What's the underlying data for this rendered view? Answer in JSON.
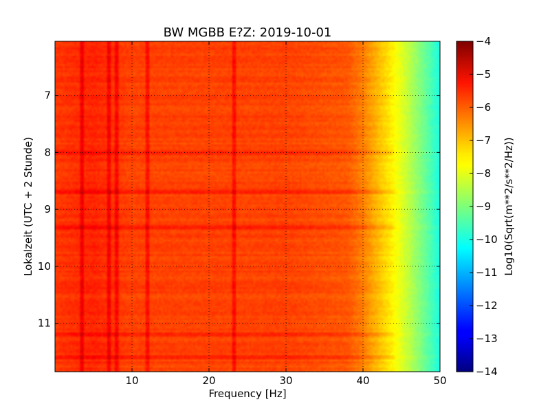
{
  "chart_data": {
    "type": "heatmap",
    "title": "BW MGBB E?Z: 2019-10-01",
    "xlabel": "Frequency [Hz]",
    "ylabel": "Lokalzeit (UTC + 2 Stunde)",
    "colorbar_label": "Log10(Sqrt(m**2/s**2/Hz))",
    "xlim": [
      0,
      50
    ],
    "ylim": [
      11.85,
      6.05
    ],
    "y_inverted": true,
    "x_ticks": [
      10,
      20,
      30,
      40,
      50
    ],
    "x_tick_labels": [
      "10",
      "20",
      "30",
      "40",
      "50"
    ],
    "y_ticks": [
      7,
      8,
      9,
      10,
      11
    ],
    "y_tick_labels": [
      "7",
      "8",
      "9",
      "10",
      "11"
    ],
    "colorbar_range": [
      -14,
      -4
    ],
    "colorbar_ticks": [
      -4,
      -5,
      -6,
      -7,
      -8,
      -9,
      -10,
      -11,
      -12,
      -13,
      -14
    ],
    "colorbar_tick_labels": [
      "−4",
      "−5",
      "−6",
      "−7",
      "−8",
      "−9",
      "−10",
      "−11",
      "−12",
      "−13",
      "−14"
    ],
    "colormap": "jet",
    "grid": true,
    "grid_style": "dotted",
    "spectral_profile": {
      "description_values": "typical log10 amplitude vs frequency",
      "frequency_hz": [
        0,
        5,
        10,
        20,
        30,
        38,
        40,
        42,
        44,
        46,
        48,
        50
      ],
      "log10_amplitude": [
        -5.8,
        -5.6,
        -5.9,
        -5.9,
        -5.9,
        -6.1,
        -6.5,
        -7.1,
        -7.7,
        -8.4,
        -9.2,
        -10.0
      ]
    },
    "notable_lines_hz": [
      3.5,
      7.0,
      8.0,
      12.0,
      23.3
    ],
    "notable_times_h": [
      8.0,
      8.7,
      9.3,
      11.2,
      11.6
    ]
  }
}
